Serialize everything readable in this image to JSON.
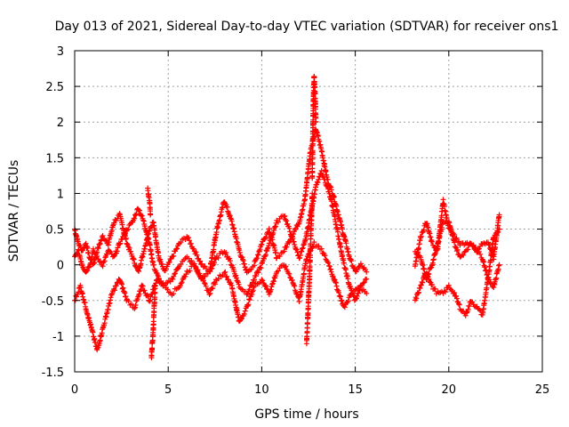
{
  "chart_data": {
    "type": "scatter",
    "title": "Day 013 of 2021, Sidereal Day-to-day VTEC variation (SDTVAR) for receiver ons1",
    "xlabel": "GPS time / hours",
    "ylabel": "SDTVAR / TECUs",
    "xlim": [
      0,
      25
    ],
    "ylim": [
      -1.5,
      3
    ],
    "xticks": [
      0,
      5,
      10,
      15,
      20,
      25
    ],
    "yticks": [
      -1.5,
      -1,
      -0.5,
      0,
      0.5,
      1,
      1.5,
      2,
      2.5,
      3
    ],
    "xtick_labels": [
      "0",
      "5",
      "10",
      "15",
      "20",
      "25"
    ],
    "ytick_labels": [
      "-1.5",
      "-1",
      "-0.5",
      "0",
      "0.5",
      "1",
      "1.5",
      "2",
      "2.5",
      "3"
    ],
    "grid": true,
    "marker": "+",
    "color": "#ff0000",
    "series": [
      {
        "name": "SDTVAR",
        "segments": [
          {
            "x": [
              0.0,
              0.2,
              0.4,
              0.6,
              0.8,
              1.0,
              1.2,
              1.5,
              1.8,
              2.1,
              2.4,
              2.8,
              3.1,
              3.4,
              3.7,
              4.0,
              4.2,
              4.5,
              4.8,
              5.2,
              5.6,
              6.0,
              6.4,
              6.8,
              7.2,
              7.6,
              8.0,
              8.4,
              8.8,
              9.2,
              9.6,
              10.0,
              10.4,
              10.8,
              11.2,
              11.6,
              12.0,
              12.3,
              12.6,
              12.9,
              13.2,
              13.5,
              13.8,
              14.1,
              14.4,
              14.7,
              15.0,
              15.3,
              15.6
            ],
            "y": [
              0.5,
              0.3,
              0.2,
              0.3,
              0.1,
              0.0,
              0.2,
              0.4,
              0.3,
              0.6,
              0.7,
              0.3,
              0.1,
              -0.1,
              0.2,
              0.5,
              0.6,
              0.1,
              -0.1,
              0.1,
              0.3,
              0.4,
              0.2,
              0.0,
              -0.1,
              0.5,
              0.9,
              0.6,
              0.2,
              -0.1,
              0.0,
              0.3,
              0.5,
              0.1,
              0.2,
              0.4,
              0.6,
              0.9,
              1.6,
              1.9,
              1.6,
              1.2,
              1.0,
              0.7,
              0.4,
              0.1,
              -0.1,
              0.0,
              -0.1
            ]
          },
          {
            "x": [
              0.0,
              0.2,
              0.4,
              0.6,
              0.8,
              1.0,
              1.2,
              1.5,
              1.8,
              2.1,
              2.4,
              2.8,
              3.1,
              3.4,
              3.7,
              4.0,
              4.2,
              4.5,
              4.8,
              5.2,
              5.6,
              6.0,
              6.4,
              6.8,
              7.2,
              7.6,
              8.0,
              8.4,
              8.8,
              9.2,
              9.6,
              10.0,
              10.4,
              10.8,
              11.2,
              11.6,
              12.0,
              12.3,
              12.6,
              12.9,
              13.2,
              13.5,
              13.8,
              14.1,
              14.4,
              14.7,
              15.0,
              15.3,
              15.6
            ],
            "y": [
              0.1,
              0.2,
              0.0,
              -0.1,
              0.0,
              0.2,
              0.1,
              0.0,
              0.2,
              0.1,
              0.3,
              0.5,
              0.6,
              0.8,
              0.6,
              0.3,
              0.0,
              -0.2,
              -0.3,
              -0.2,
              0.0,
              0.1,
              0.0,
              -0.2,
              -0.1,
              0.1,
              0.2,
              0.0,
              -0.3,
              -0.4,
              -0.2,
              0.0,
              0.3,
              0.6,
              0.7,
              0.4,
              0.1,
              0.3,
              0.7,
              1.1,
              1.3,
              1.1,
              0.8,
              0.4,
              0.0,
              -0.3,
              -0.5,
              -0.3,
              -0.2
            ]
          },
          {
            "x": [
              0.0,
              0.3,
              0.6,
              0.9,
              1.2,
              1.6,
              2.0,
              2.4,
              2.8,
              3.2,
              3.6,
              4.0,
              4.4,
              4.8,
              5.2,
              5.6,
              6.0,
              6.4,
              6.8,
              7.2,
              7.6,
              8.0,
              8.4,
              8.8,
              9.2,
              9.6,
              10.0,
              10.4,
              10.8,
              11.2,
              11.6,
              12.0,
              12.4,
              12.8,
              13.2,
              13.6,
              14.0,
              14.4,
              14.8,
              15.2,
              15.6
            ],
            "y": [
              -0.5,
              -0.3,
              -0.6,
              -0.9,
              -1.2,
              -0.8,
              -0.4,
              -0.2,
              -0.5,
              -0.6,
              -0.3,
              -0.5,
              -0.2,
              -0.3,
              -0.4,
              -0.3,
              -0.1,
              0.0,
              -0.2,
              -0.4,
              -0.2,
              -0.1,
              -0.3,
              -0.8,
              -0.6,
              -0.3,
              -0.2,
              -0.4,
              -0.1,
              0.0,
              -0.2,
              -0.5,
              0.1,
              0.3,
              0.2,
              0.0,
              -0.3,
              -0.6,
              -0.4,
              -0.3,
              -0.4
            ]
          },
          {
            "x": [
              18.2,
              18.5,
              18.8,
              19.1,
              19.4,
              19.7,
              20.0,
              20.3,
              20.6,
              20.9,
              21.2,
              21.5,
              21.8,
              22.1,
              22.4,
              22.7
            ],
            "y": [
              0.0,
              0.4,
              0.6,
              0.3,
              0.2,
              0.9,
              0.5,
              0.4,
              0.3,
              0.3,
              0.3,
              0.2,
              0.3,
              0.3,
              0.1,
              0.7
            ]
          },
          {
            "x": [
              18.2,
              18.5,
              18.8,
              19.1,
              19.4,
              19.7,
              20.0,
              20.3,
              20.6,
              20.9,
              21.2,
              21.5,
              21.8,
              22.1,
              22.4,
              22.7
            ],
            "y": [
              -0.5,
              -0.3,
              -0.1,
              -0.3,
              -0.4,
              -0.4,
              -0.3,
              -0.4,
              -0.6,
              -0.7,
              -0.5,
              -0.6,
              -0.7,
              -0.2,
              -0.3,
              0.0
            ]
          },
          {
            "x": [
              18.2,
              18.5,
              18.8,
              19.1,
              19.4,
              19.7,
              20.0,
              20.3,
              20.6,
              20.9,
              21.2,
              21.5,
              21.8,
              22.1,
              22.4,
              22.7
            ],
            "y": [
              0.2,
              0.1,
              -0.2,
              0.0,
              0.3,
              0.6,
              0.6,
              0.3,
              0.1,
              0.2,
              0.3,
              0.2,
              0.1,
              -0.2,
              0.4,
              0.5
            ]
          },
          {
            "x": [
              4.1,
              4.15,
              4.2,
              4.25,
              4.3
            ],
            "y": [
              -1.3,
              -1.1,
              -0.9,
              -0.6,
              -0.3
            ]
          },
          {
            "x": [
              12.4,
              12.45,
              12.5,
              12.55,
              12.6,
              12.65,
              12.7
            ],
            "y": [
              -1.1,
              -0.8,
              -0.5,
              -0.2,
              0.2,
              0.6,
              1.0
            ]
          },
          {
            "x": [
              12.7,
              12.72,
              12.74,
              12.76,
              12.78,
              12.8,
              12.85,
              12.9
            ],
            "y": [
              1.2,
              1.6,
              2.0,
              2.3,
              2.5,
              2.65,
              2.4,
              2.0
            ]
          },
          {
            "x": [
              3.9,
              4.0,
              4.05
            ],
            "y": [
              1.05,
              0.9,
              0.7
            ]
          }
        ]
      }
    ]
  }
}
